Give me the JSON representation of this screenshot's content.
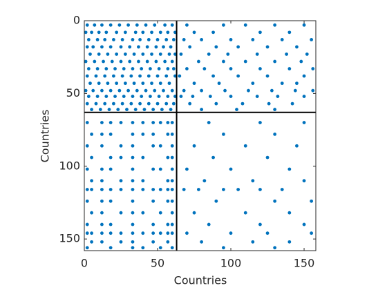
{
  "chart_data": {
    "type": "spy",
    "xlabel": "Countries",
    "ylabel": "Countries",
    "xlim": [
      0,
      158
    ],
    "ylim": [
      0,
      158
    ],
    "y_reversed": true,
    "xticks": [
      0,
      50,
      100,
      150
    ],
    "yticks": [
      0,
      50,
      100,
      150
    ],
    "color": "#0072bd",
    "partition_lines": [
      63
    ],
    "rows": [
      {
        "y": 3,
        "x": [
          2,
          7,
          12,
          18,
          24,
          30,
          36,
          42,
          48,
          55,
          60,
          70,
          95,
          110,
          130,
          150
        ]
      },
      {
        "y": 8,
        "x": [
          1,
          5,
          10,
          15,
          22,
          28,
          35,
          40,
          46,
          52,
          57,
          62,
          75,
          88,
          120,
          140
        ]
      },
      {
        "y": 13,
        "x": [
          3,
          9,
          14,
          20,
          26,
          33,
          38,
          44,
          50,
          56,
          61,
          68,
          80,
          100,
          115,
          135,
          155
        ]
      },
      {
        "y": 18,
        "x": [
          2,
          6,
          12,
          18,
          25,
          31,
          37,
          43,
          49,
          54,
          59,
          72,
          90,
          105,
          125,
          145
        ]
      },
      {
        "y": 23,
        "x": [
          4,
          10,
          16,
          22,
          28,
          34,
          40,
          46,
          52,
          58,
          62,
          66,
          85,
          98,
          118,
          138,
          152
        ]
      },
      {
        "y": 28,
        "x": [
          1,
          7,
          13,
          19,
          25,
          31,
          37,
          43,
          49,
          55,
          60,
          78,
          95,
          110,
          130,
          148
        ]
      },
      {
        "y": 33,
        "x": [
          3,
          9,
          15,
          21,
          27,
          33,
          39,
          45,
          51,
          57,
          61,
          70,
          82,
          100,
          120,
          140,
          156
        ]
      },
      {
        "y": 38,
        "x": [
          2,
          8,
          14,
          20,
          26,
          32,
          38,
          44,
          50,
          56,
          62,
          65,
          88,
          105,
          125,
          150
        ]
      },
      {
        "y": 43,
        "x": [
          4,
          10,
          16,
          22,
          28,
          34,
          40,
          46,
          52,
          58,
          75,
          92,
          115,
          135,
          145
        ]
      },
      {
        "y": 48,
        "x": [
          1,
          6,
          12,
          18,
          24,
          30,
          36,
          42,
          48,
          54,
          60,
          68,
          80,
          96,
          112,
          128,
          144,
          156
        ]
      },
      {
        "y": 52,
        "x": [
          3,
          9,
          15,
          21,
          27,
          33,
          39,
          45,
          51,
          57,
          62,
          66,
          74,
          86,
          100,
          118,
          132,
          150
        ]
      },
      {
        "y": 57,
        "x": [
          2,
          8,
          14,
          20,
          26,
          32,
          38,
          44,
          50,
          56,
          61,
          72,
          90,
          108,
          126,
          142
        ]
      },
      {
        "y": 61,
        "x": [
          5,
          11,
          17,
          23,
          29,
          35,
          41,
          47,
          53,
          59,
          80,
          104,
          130
        ]
      },
      {
        "y": 70,
        "x": [
          2,
          12,
          18,
          25,
          33,
          40,
          47,
          52,
          57,
          60,
          85,
          120,
          150
        ]
      },
      {
        "y": 78,
        "x": [
          5,
          12,
          18,
          33,
          40,
          47,
          57,
          60,
          95,
          130
        ]
      },
      {
        "y": 86,
        "x": [
          2,
          12,
          25,
          33,
          47,
          52,
          60,
          75,
          110,
          145
        ]
      },
      {
        "y": 94,
        "x": [
          5,
          18,
          25,
          33,
          40,
          57,
          60,
          88,
          125
        ]
      },
      {
        "y": 102,
        "x": [
          2,
          12,
          18,
          33,
          47,
          52,
          60,
          70,
          100,
          140
        ]
      },
      {
        "y": 110,
        "x": [
          5,
          12,
          25,
          33,
          40,
          57,
          60,
          82,
          115,
          150
        ]
      },
      {
        "y": 116,
        "x": [
          2,
          5,
          12,
          18,
          25,
          33,
          40,
          47,
          52,
          57,
          60,
          68,
          78,
          95,
          105,
          120,
          135
        ]
      },
      {
        "y": 124,
        "x": [
          2,
          12,
          18,
          33,
          47,
          57,
          60,
          90,
          130,
          155
        ]
      },
      {
        "y": 132,
        "x": [
          5,
          12,
          25,
          33,
          40,
          52,
          60,
          75,
          110,
          140
        ]
      },
      {
        "y": 140,
        "x": [
          2,
          12,
          18,
          33,
          47,
          57,
          60,
          85,
          120,
          150
        ]
      },
      {
        "y": 146,
        "x": [
          2,
          5,
          12,
          18,
          25,
          33,
          40,
          47,
          52,
          57,
          60,
          70,
          100,
          125,
          155
        ]
      },
      {
        "y": 152,
        "x": [
          5,
          12,
          25,
          33,
          47,
          57,
          80,
          115,
          140
        ]
      },
      {
        "y": 156,
        "x": [
          2,
          18,
          33,
          40,
          52,
          60,
          95,
          130
        ]
      }
    ]
  }
}
